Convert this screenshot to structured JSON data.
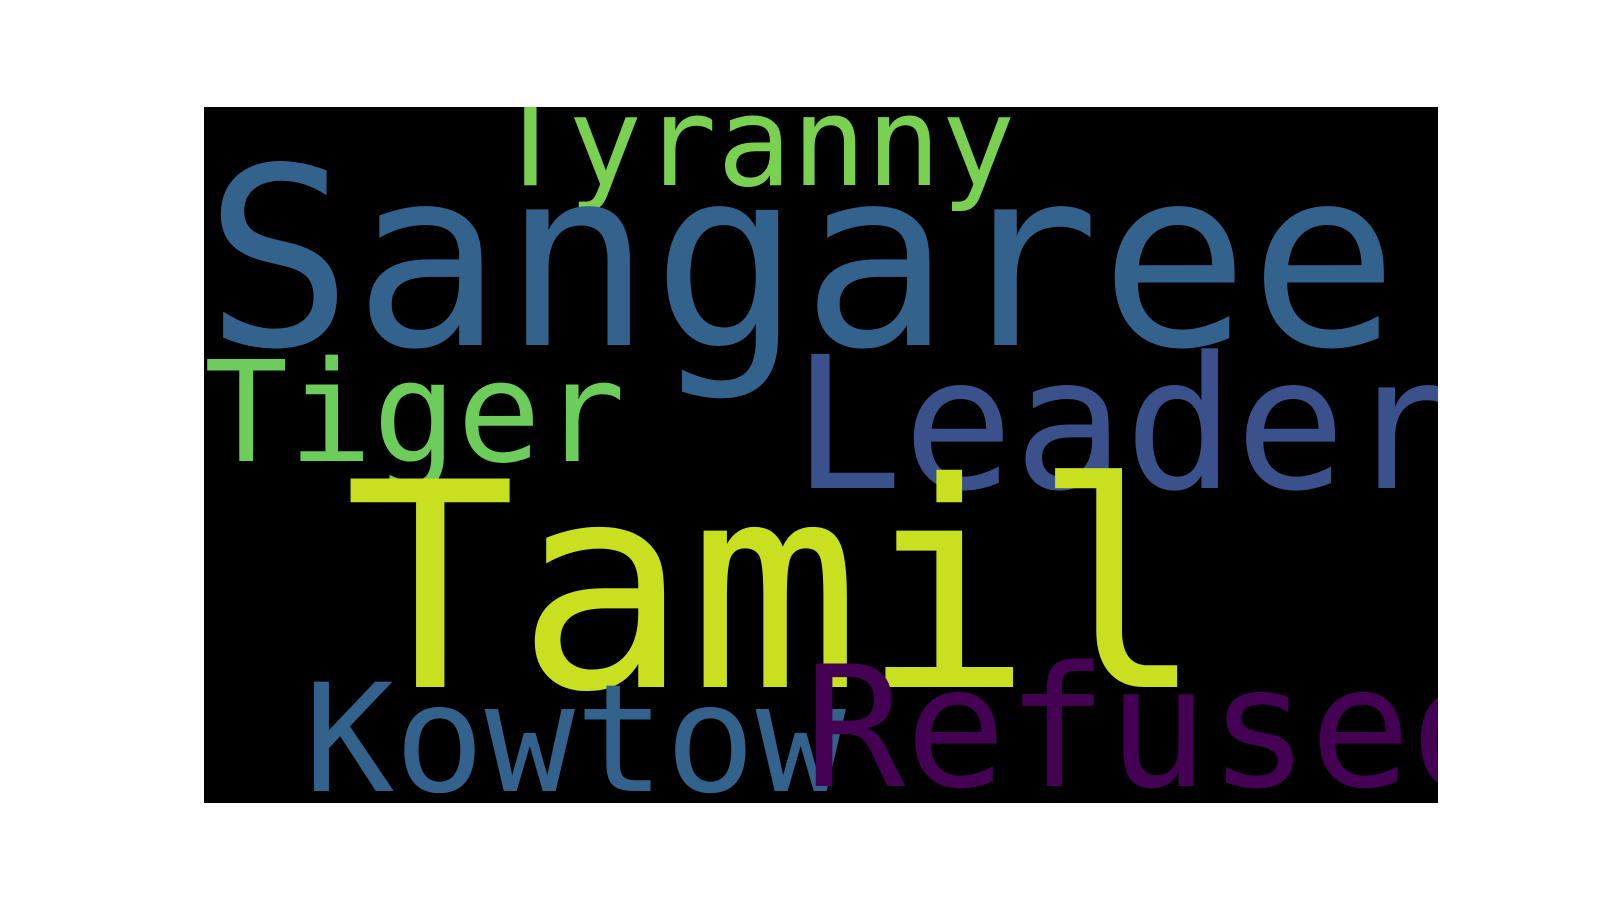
{
  "wordcloud": {
    "background": "#000000",
    "words": {
      "sangaree": {
        "text": "Sangaree",
        "color": "#33638d"
      },
      "tamil": {
        "text": "Tamil",
        "color": "#c8e020"
      },
      "leader": {
        "text": "Leader",
        "color": "#3b518b"
      },
      "refused": {
        "text": "Refused",
        "color": "#440154"
      },
      "kowtow": {
        "text": "Kowtow",
        "color": "#33638d"
      },
      "tiger": {
        "text": "Tiger",
        "color": "#6ccd5a"
      },
      "tyranny": {
        "text": "Tyranny",
        "color": "#7ad151"
      }
    }
  }
}
